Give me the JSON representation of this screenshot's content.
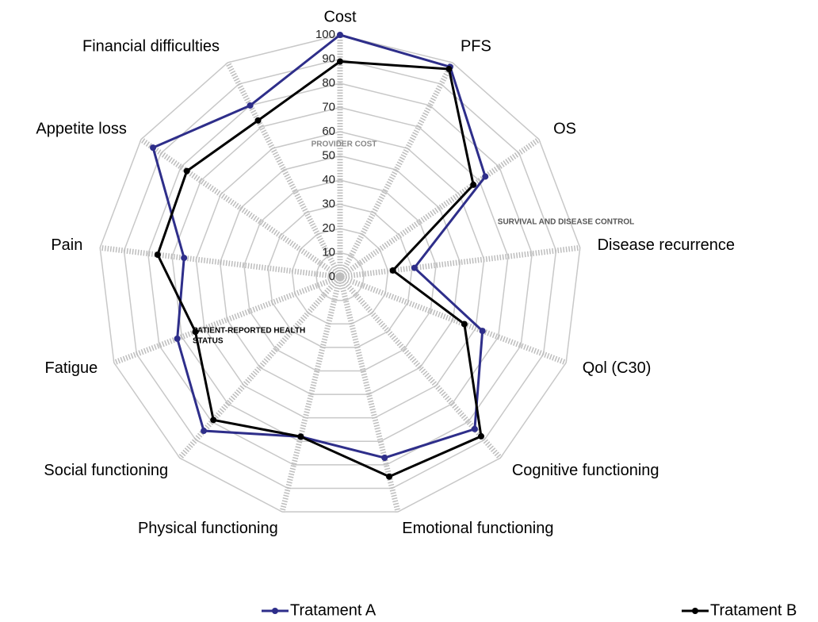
{
  "chart_data": {
    "type": "radar",
    "categories": [
      "Cost",
      "PFS",
      "OS",
      "Disease recurrence",
      "Qol (C30)",
      "Cognitive functioning",
      "Emotional functioning",
      "Physical functioning",
      "Social functioning",
      "Fatigue",
      "Pain",
      "Appetite loss",
      "Financial difficulties"
    ],
    "series": [
      {
        "name": "Tratament A",
        "color": "#2e2e8a",
        "values": [
          100,
          98,
          73,
          31,
          63,
          84,
          77,
          68,
          85,
          72,
          65,
          94,
          80
        ]
      },
      {
        "name": "Tratament B",
        "color": "#000000",
        "values": [
          89,
          97,
          67,
          22,
          55,
          88,
          85,
          68,
          79,
          64,
          76,
          77,
          73
        ]
      }
    ],
    "ylim": [
      0,
      100
    ],
    "yticks": [
      0,
      10,
      20,
      30,
      40,
      50,
      60,
      70,
      80,
      90,
      100
    ],
    "annotations": [
      {
        "text": "PROVIDER COST",
        "color": "#888888"
      },
      {
        "text": "SURVIVAL AND DISEASE CONTROL",
        "color": "#555555"
      },
      {
        "text": "PATIENT-REPORTED HEALTH",
        "color": "#000000"
      },
      {
        "text": "STATUS",
        "color": "#000000"
      }
    ]
  }
}
